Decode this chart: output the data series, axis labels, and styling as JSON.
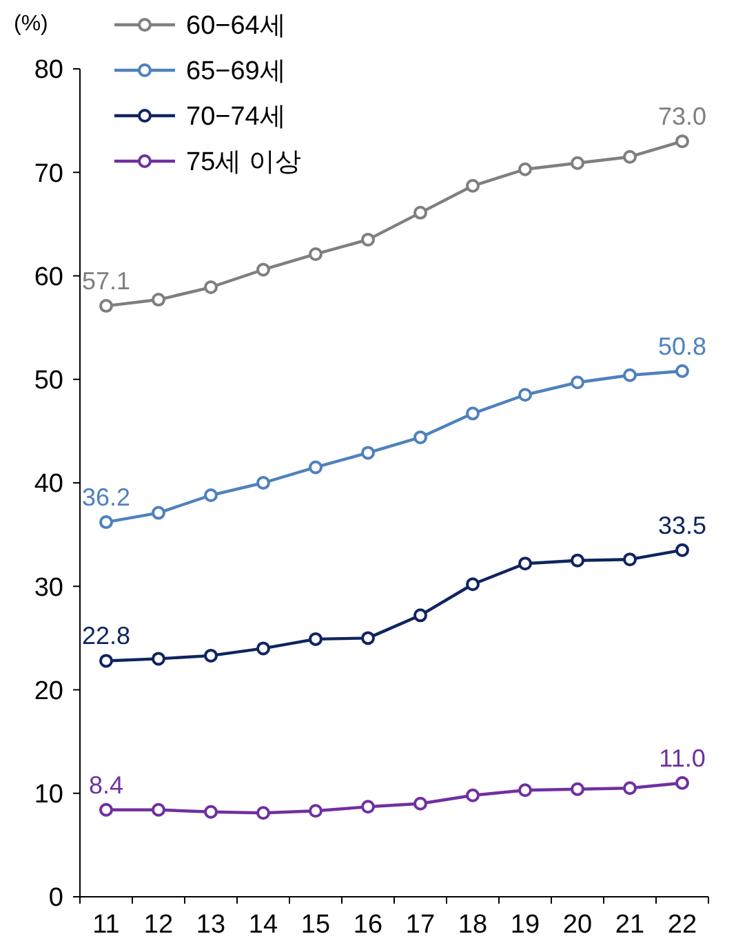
{
  "chart_data": {
    "type": "line",
    "ylabel": "(%)",
    "categories": [
      "11",
      "12",
      "13",
      "14",
      "15",
      "16",
      "17",
      "18",
      "19",
      "20",
      "21",
      "22"
    ],
    "ylim": [
      0,
      80
    ],
    "yticks": [
      0,
      10,
      20,
      30,
      40,
      50,
      60,
      70,
      80
    ],
    "grid": false,
    "legend": "top left",
    "marker": "circle",
    "line_style": "solid",
    "series": [
      {
        "name": "60−64세",
        "color": "#7f7f7f",
        "values": [
          57.1,
          57.7,
          58.9,
          60.6,
          62.1,
          63.5,
          66.1,
          68.7,
          70.3,
          70.9,
          71.5,
          73.0
        ],
        "value_labels": [
          "57.1",
          null,
          null,
          null,
          null,
          null,
          null,
          null,
          null,
          null,
          null,
          "73.0"
        ]
      },
      {
        "name": "65−69세",
        "color": "#4f81bd",
        "values": [
          36.2,
          37.1,
          38.8,
          40.0,
          41.5,
          42.9,
          44.4,
          46.7,
          48.5,
          49.7,
          50.4,
          50.8
        ],
        "value_labels": [
          "36.2",
          null,
          null,
          null,
          null,
          null,
          null,
          null,
          null,
          null,
          null,
          "50.8"
        ]
      },
      {
        "name": "70−74세",
        "color": "#0f2460",
        "values": [
          22.8,
          23.0,
          23.3,
          24.0,
          24.9,
          25.0,
          27.2,
          30.2,
          32.2,
          32.5,
          32.6,
          33.5
        ],
        "value_labels": [
          "22.8",
          null,
          null,
          null,
          null,
          null,
          null,
          null,
          null,
          null,
          null,
          "33.5"
        ]
      },
      {
        "name": "75세 이상",
        "color": "#7030a0",
        "values": [
          8.4,
          8.4,
          8.2,
          8.1,
          8.3,
          8.7,
          9.0,
          9.8,
          10.3,
          10.4,
          10.5,
          11.0
        ],
        "value_labels": [
          "8.4",
          null,
          null,
          null,
          null,
          null,
          null,
          null,
          null,
          null,
          null,
          "11.0"
        ]
      }
    ]
  }
}
